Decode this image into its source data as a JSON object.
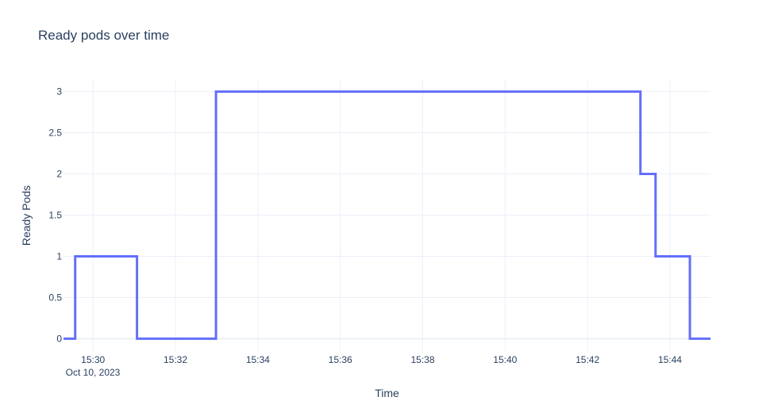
{
  "chart_data": {
    "type": "line",
    "line_shape": "step-hv",
    "title": "Ready pods over time",
    "xlabel": "Time",
    "ylabel": "Ready Pods",
    "date_label": "Oct 10, 2023",
    "x": [
      "15:29:17",
      "15:29:34",
      "15:31:04",
      "15:32:59",
      "15:43:17",
      "15:43:39",
      "15:44:29",
      "15:44:59"
    ],
    "y": [
      0,
      1,
      0,
      3,
      2,
      1,
      0,
      0
    ],
    "xlim": [
      "15:29:17",
      "15:44:59"
    ],
    "ylim": [
      -0.15,
      3.15
    ],
    "x_ticks": [
      "15:30",
      "15:32",
      "15:34",
      "15:36",
      "15:38",
      "15:40",
      "15:42",
      "15:44"
    ],
    "y_ticks": [
      0,
      0.5,
      1,
      1.5,
      2,
      2.5,
      3
    ],
    "grid": true,
    "line_color": "#636efa",
    "grid_color": "#ebf0f8"
  }
}
